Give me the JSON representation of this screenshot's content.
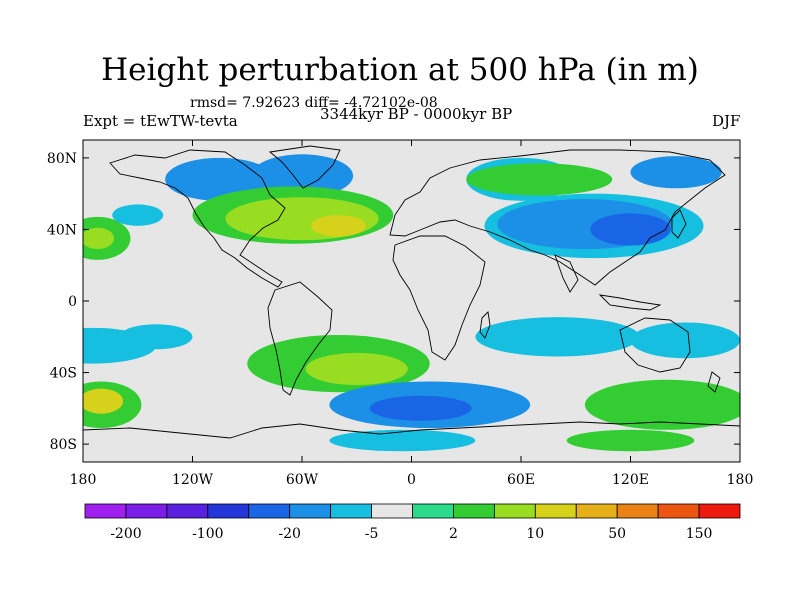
{
  "header": {
    "title": "Height perturbation at 500 hPa (in m)",
    "stats": "rmsd= 7.92623 diff= -4.72102e-08",
    "experiment": "Expt = tEwTW-tevta",
    "period": "3344kyr BP - 0000kyr BP",
    "season": "DJF"
  },
  "axes": {
    "lat_labels": [
      "80N",
      "40N",
      "0",
      "40S",
      "80S"
    ],
    "lat_values": [
      80,
      40,
      0,
      -40,
      -80
    ],
    "lon_labels": [
      "180",
      "120W",
      "60W",
      "0",
      "60E",
      "120E",
      "180"
    ],
    "lon_values": [
      -180,
      -120,
      -60,
      0,
      60,
      120,
      180
    ]
  },
  "colorbar": {
    "colors": [
      "#a020f0",
      "#7a1ee8",
      "#5a20e0",
      "#2536d8",
      "#1a64e6",
      "#1b90e6",
      "#16bfe0",
      "#e6e6e6",
      "#2adc8a",
      "#33cc33",
      "#99dd22",
      "#d6d21b",
      "#e6b019",
      "#ea8214",
      "#ec5510",
      "#ee1a10"
    ],
    "labels": [
      "-200",
      "-100",
      "-20",
      "-5",
      "2",
      "10",
      "50",
      "150"
    ]
  },
  "field": {
    "background_color": "#e6e6e6",
    "blobs": [
      {
        "lon": -105,
        "lat": 68,
        "rx": 30,
        "ry": 12,
        "level": 5
      },
      {
        "lon": -60,
        "lat": 70,
        "rx": 28,
        "ry": 12,
        "level": 5
      },
      {
        "lon": 60,
        "lat": 68,
        "rx": 30,
        "ry": 12,
        "level": 6
      },
      {
        "lon": 145,
        "lat": 72,
        "rx": 25,
        "ry": 9,
        "level": 5
      },
      {
        "lon": -65,
        "lat": 48,
        "rx": 55,
        "ry": 16,
        "level": 9
      },
      {
        "lon": -60,
        "lat": 46,
        "rx": 42,
        "ry": 12,
        "level": 10
      },
      {
        "lon": -40,
        "lat": 42,
        "rx": 15,
        "ry": 6,
        "level": 11
      },
      {
        "lon": -172,
        "lat": 35,
        "rx": 18,
        "ry": 12,
        "level": 9
      },
      {
        "lon": -172,
        "lat": 35,
        "rx": 9,
        "ry": 6,
        "level": 10
      },
      {
        "lon": 70,
        "lat": 68,
        "rx": 40,
        "ry": 9,
        "level": 9
      },
      {
        "lon": 100,
        "lat": 42,
        "rx": 60,
        "ry": 18,
        "level": 6
      },
      {
        "lon": 95,
        "lat": 43,
        "rx": 48,
        "ry": 14,
        "level": 5
      },
      {
        "lon": 120,
        "lat": 40,
        "rx": 22,
        "ry": 9,
        "level": 4
      },
      {
        "lon": -150,
        "lat": 48,
        "rx": 14,
        "ry": 6,
        "level": 6
      },
      {
        "lon": -175,
        "lat": -25,
        "rx": 35,
        "ry": 10,
        "level": 6
      },
      {
        "lon": -140,
        "lat": -20,
        "rx": 20,
        "ry": 7,
        "level": 6
      },
      {
        "lon": 80,
        "lat": -20,
        "rx": 45,
        "ry": 11,
        "level": 6
      },
      {
        "lon": 150,
        "lat": -22,
        "rx": 30,
        "ry": 10,
        "level": 6
      },
      {
        "lon": -40,
        "lat": -35,
        "rx": 50,
        "ry": 16,
        "level": 9
      },
      {
        "lon": -30,
        "lat": -38,
        "rx": 28,
        "ry": 9,
        "level": 10
      },
      {
        "lon": -170,
        "lat": -58,
        "rx": 22,
        "ry": 13,
        "level": 9
      },
      {
        "lon": -170,
        "lat": -56,
        "rx": 12,
        "ry": 7,
        "level": 11
      },
      {
        "lon": 140,
        "lat": -58,
        "rx": 45,
        "ry": 14,
        "level": 9
      },
      {
        "lon": 10,
        "lat": -58,
        "rx": 55,
        "ry": 13,
        "level": 5
      },
      {
        "lon": 5,
        "lat": -60,
        "rx": 28,
        "ry": 7,
        "level": 4
      },
      {
        "lon": -5,
        "lat": -78,
        "rx": 40,
        "ry": 6,
        "level": 6
      },
      {
        "lon": 120,
        "lat": -78,
        "rx": 35,
        "ry": 6,
        "level": 9
      }
    ]
  }
}
